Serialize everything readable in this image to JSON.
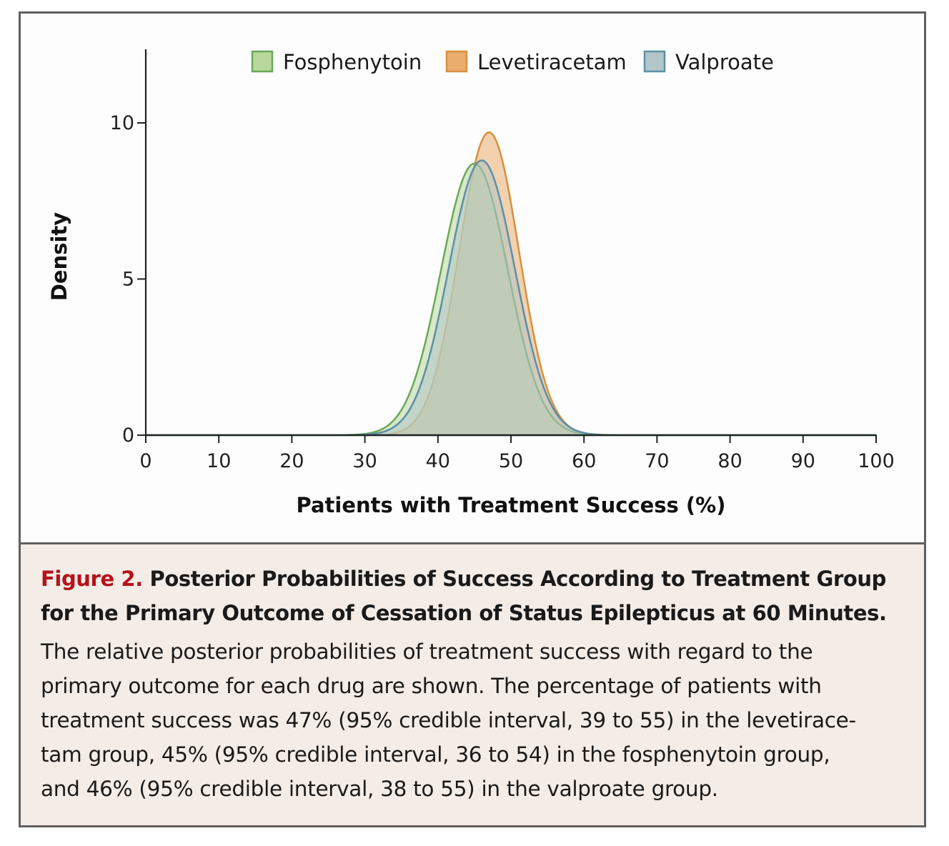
{
  "colors": {
    "fosphenytoin": "#b9d79c",
    "fosphenytoin_stroke": "#6aa85a",
    "levetiracetam": "#e9ad6d",
    "levetiracetam_stroke": "#d98f3e",
    "valproate": "#b2c5c9",
    "valproate_stroke": "#5b8fa6",
    "axis": "#222222",
    "figure_label": "#b5121b",
    "caption_bg": "#f4ece6"
  },
  "chart_data": {
    "type": "area",
    "ylabel": "Density",
    "xlabel": "Patients with Treatment Success (%)",
    "xlim": [
      0,
      100
    ],
    "ylim": [
      0,
      10
    ],
    "x_ticks": [
      "0",
      "10",
      "20",
      "30",
      "40",
      "50",
      "60",
      "70",
      "80",
      "90",
      "100"
    ],
    "y_ticks": [
      "0",
      "5",
      "10"
    ],
    "legend_position": "top",
    "grid": false,
    "series": [
      {
        "name": "Fosphenytoin",
        "mean": 45,
        "peak_density": 8.7,
        "color_key": "fosphenytoin"
      },
      {
        "name": "Levetiracetam",
        "mean": 47,
        "peak_density": 9.7,
        "color_key": "levetiracetam"
      },
      {
        "name": "Valproate",
        "mean": 46,
        "peak_density": 8.8,
        "color_key": "valproate"
      }
    ]
  },
  "caption": {
    "figure_label": "Figure 2.",
    "title_line1_rest": "Posterior Probabilities of Success According to Treatment Group",
    "title_line2": "for the Primary Outcome of Cessation of Status Epilepticus at 60 Minutes.",
    "body_lines": [
      "The relative posterior probabilities of treatment success with regard to the",
      "primary outcome for each drug are shown. The percentage of patients with",
      "treatment success was 47% (95% credible interval, 39 to 55) in the levetirace-",
      "tam group, 45% (95% credible interval, 36 to 54) in the fosphenytoin group,",
      "and 46% (95% credible interval, 38 to 55) in the valproate group."
    ]
  }
}
